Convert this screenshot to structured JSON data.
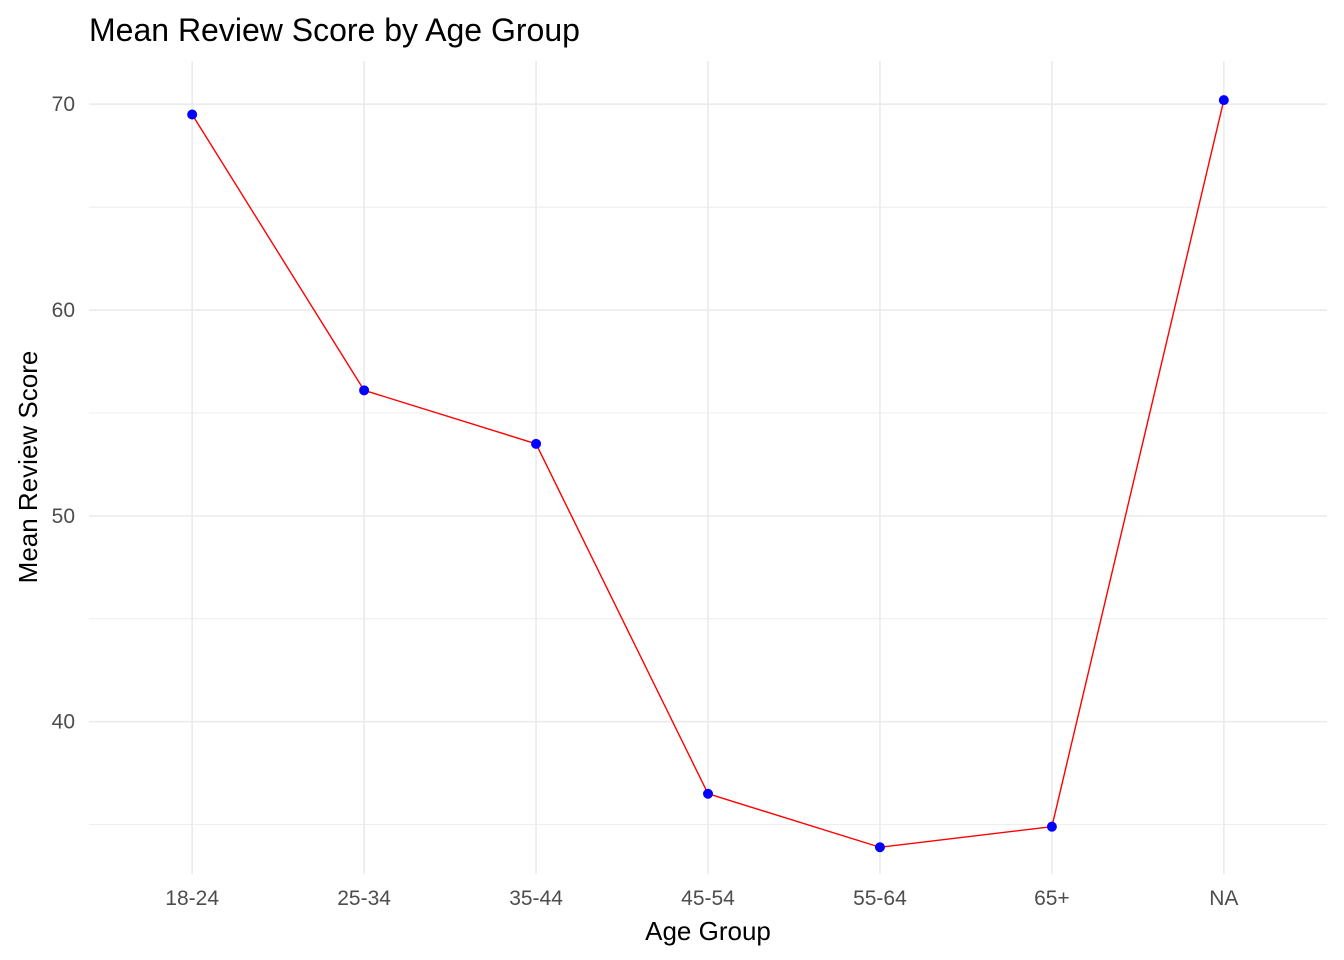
{
  "chart_data": {
    "type": "line",
    "title": "Mean Review Score by Age Group",
    "xlabel": "Age Group",
    "ylabel": "Mean Review Score",
    "categories": [
      "18-24",
      "25-34",
      "35-44",
      "45-54",
      "55-64",
      "65+",
      "NA"
    ],
    "values": [
      69.5,
      56.1,
      53.5,
      36.5,
      33.9,
      34.9,
      70.2
    ],
    "ylim": [
      32.6,
      72.1
    ],
    "yticks": [
      40,
      50,
      60,
      70
    ],
    "grid": true,
    "legend": "none",
    "colors": {
      "line": "#ff0000",
      "point_fill": "#0000ff",
      "point_stroke": "#0000ff",
      "grid": "#ebebeb",
      "tick_text": "#4d4d4d",
      "text": "#000000"
    }
  }
}
